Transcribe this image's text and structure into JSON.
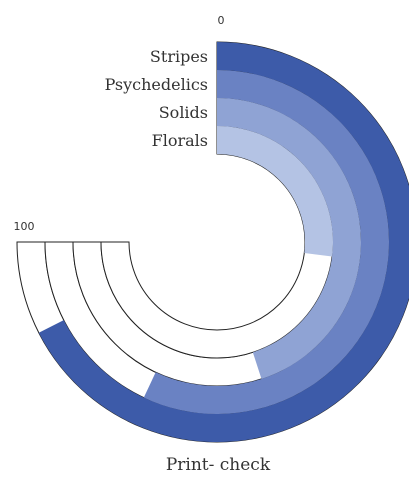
{
  "chart_data": {
    "type": "radial-bar",
    "title": "Print- check",
    "categories": [
      "Stripes",
      "Psychedelics",
      "Solids",
      "Florals"
    ],
    "values": [
      90,
      76,
      60,
      36
    ],
    "axis": {
      "min": 0,
      "max": 100,
      "tick_labels": [
        "0",
        "100"
      ],
      "sweep_degrees": 270,
      "start": "top",
      "direction": "clockwise"
    },
    "colors": [
      "#3d5ba9",
      "#6a82c3",
      "#8fa3d4",
      "#b4c3e4"
    ],
    "track_color": "#ffffff",
    "track_outline": "#222222",
    "grid": false,
    "legend": "labels at bar start"
  }
}
